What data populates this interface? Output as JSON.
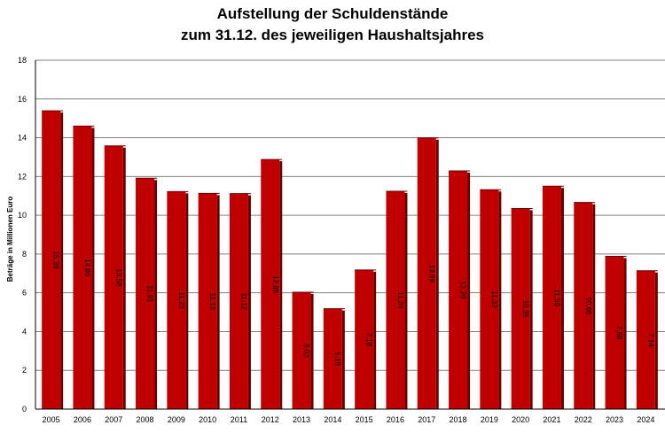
{
  "chart_data": {
    "type": "bar",
    "title": "Aufstellung der Schuldenstände",
    "subtitle": "zum 31.12. des jeweiligen Haushaltsjahres",
    "xlabel": "",
    "ylabel": "Beträge in Millionen Euro",
    "ylim": [
      0,
      18
    ],
    "yticks": [
      "0",
      "2",
      "4",
      "6",
      "8",
      "10",
      "12",
      "14",
      "16",
      "18"
    ],
    "grid": true,
    "legend": "none",
    "colors": {
      "bar": "#c00000",
      "bar_side": "#6e0000",
      "grid": "#808080"
    },
    "categories": [
      "2005",
      "2006",
      "2007",
      "2008",
      "2009",
      "2010",
      "2011",
      "2012",
      "2013",
      "2014",
      "2015",
      "2016",
      "2017",
      "2018",
      "2019",
      "2020",
      "2021",
      "2022",
      "2023",
      "2024"
    ],
    "values": [
      15.39,
      14.6,
      13.58,
      11.91,
      11.22,
      11.13,
      11.12,
      12.88,
      6.03,
      5.18,
      7.18,
      11.24,
      13.99,
      12.29,
      11.32,
      10.35,
      11.5,
      10.66,
      7.88,
      7.14
    ],
    "data_labels": [
      "15,39",
      "14,60",
      "13,58",
      "11,91",
      "11,22",
      "11,13",
      "11,12",
      "12,88",
      "6,03",
      "5,18",
      "7,18",
      "11,24",
      "13,99",
      "12,29",
      "11,32",
      "10,35",
      "11,50",
      "10,66",
      "7,88",
      "7,14"
    ]
  }
}
